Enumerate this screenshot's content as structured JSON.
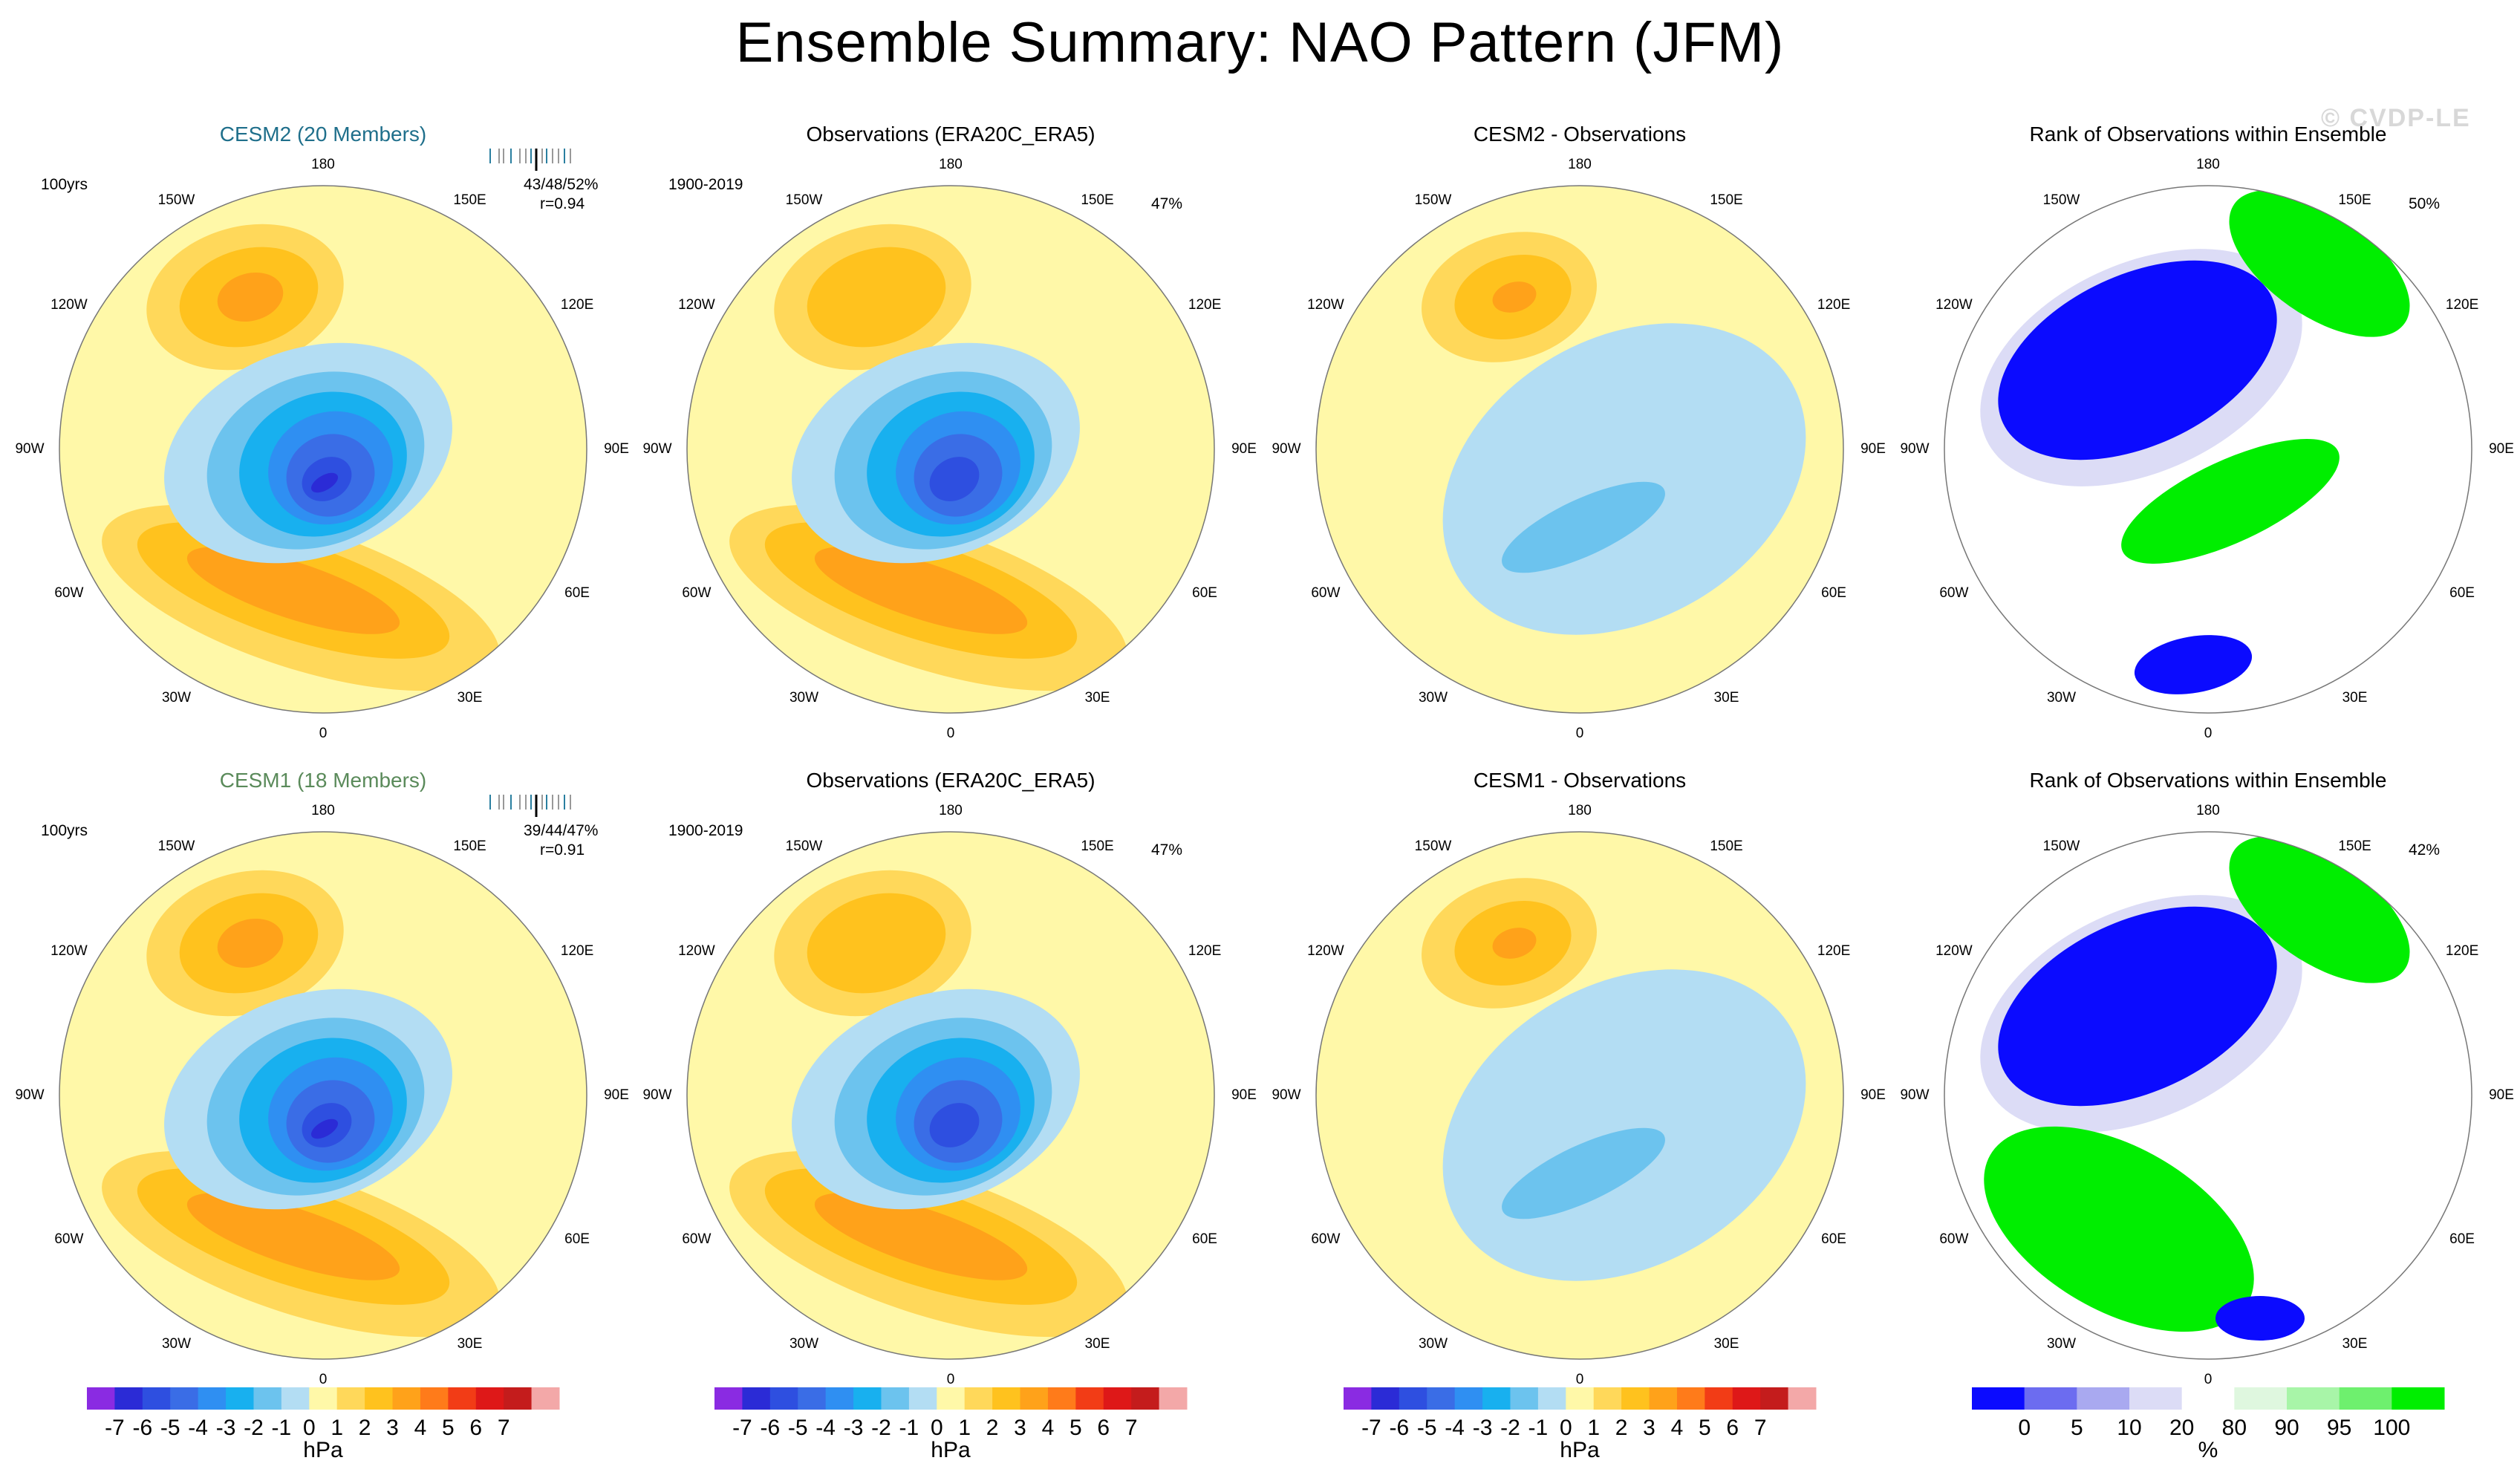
{
  "title": "Ensemble Summary: NAO Pattern (JFM)",
  "watermark": "© CVDP-LE",
  "rows": [
    {
      "panels": [
        {
          "title": "CESM2 (20 Members)",
          "style": "cesm2",
          "left_note": "100yrs",
          "right_note": "43/48/52%",
          "right_note2": "r=0.94",
          "stripes": true
        },
        {
          "title": "Observations (ERA20C_ERA5)",
          "style": "",
          "left_note": "1900-2019",
          "right_note": "47%",
          "right_note2": ""
        },
        {
          "title": "CESM2 - Observations",
          "style": "",
          "left_note": "",
          "right_note": "",
          "right_note2": ""
        },
        {
          "title": "Rank of Observations within Ensemble",
          "style": "",
          "left_note": "",
          "right_note": "50%",
          "right_note2": ""
        }
      ]
    },
    {
      "panels": [
        {
          "title": "CESM1 (18 Members)",
          "style": "cesm1",
          "left_note": "100yrs",
          "right_note": "39/44/47%",
          "right_note2": "r=0.91",
          "stripes": true
        },
        {
          "title": "Observations (ERA20C_ERA5)",
          "style": "",
          "left_note": "1900-2019",
          "right_note": "47%",
          "right_note2": ""
        },
        {
          "title": "CESM1 - Observations",
          "style": "",
          "left_note": "",
          "right_note": "",
          "right_note2": ""
        },
        {
          "title": "Rank of Observations within Ensemble",
          "style": "",
          "left_note": "",
          "right_note": "42%",
          "right_note2": ""
        }
      ]
    }
  ],
  "longitude_labels": [
    "180",
    "150E",
    "120E",
    "90E",
    "60E",
    "30E",
    "0",
    "30W",
    "60W",
    "90W",
    "120W",
    "150W"
  ],
  "chart_data": {
    "type": "heatmap",
    "projection": "north polar stereographic",
    "field": "Sea level pressure NAO pattern (JFM)",
    "units": "hPa",
    "pressure_colorbar": {
      "labels": [
        "-7",
        "-6",
        "-5",
        "-4",
        "-3",
        "-2",
        "-1",
        "0",
        "1",
        "2",
        "3",
        "4",
        "5",
        "6",
        "7"
      ],
      "unit_label": "hPa",
      "colors": [
        "#8a2be2",
        "#2b2bd6",
        "#2e4fe0",
        "#3a6de6",
        "#2f8ff2",
        "#18b0ef",
        "#6cc3ee",
        "#b3ddf3",
        "#fff8a8",
        "#ffd85a",
        "#ffc21e",
        "#ffa21a",
        "#ff7b1a",
        "#f23c16",
        "#de1818",
        "#c41c1c",
        "#f3a8a8"
      ]
    },
    "rank_colorbar": {
      "labels": [
        "0",
        "5",
        "10",
        "20",
        "80",
        "90",
        "95",
        "100"
      ],
      "unit_label": "%",
      "colors": [
        "#0b0bff",
        "#6c6cf0",
        "#a9a9f0",
        "#dcdcf6",
        "#ffffff",
        "#dff7df",
        "#a8f5a8",
        "#6ef06e",
        "#00ee00"
      ]
    },
    "panel_ranges_hPa": {
      "CESM2 (20 Members)": [
        -7,
        3
      ],
      "Observations (ERA20C_ERA5)": [
        -6,
        4
      ],
      "CESM2 - Observations": [
        -1,
        3
      ],
      "CESM1 (18 Members)": [
        -6,
        2
      ],
      "CESM1 - Observations": [
        -1,
        3
      ]
    }
  }
}
